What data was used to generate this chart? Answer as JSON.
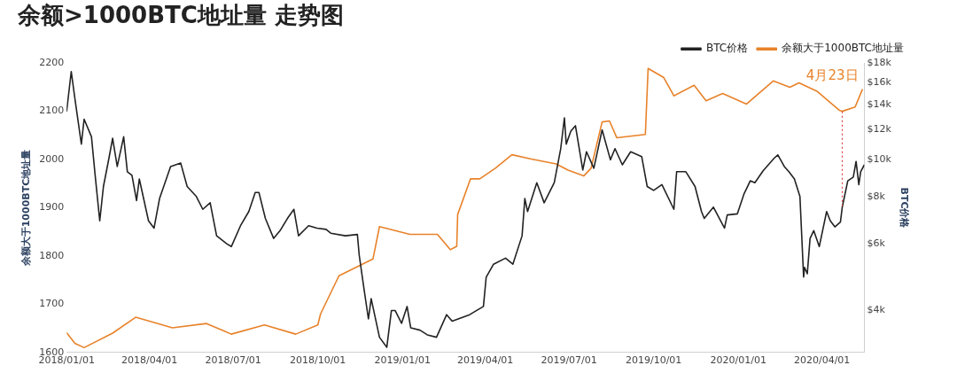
{
  "chart_data": {
    "type": "line",
    "title": "余额>1000BTC地址量 走势图",
    "ylabel": "余额大于1000BTC地址量",
    "y2label": "BTC价格",
    "legend": "top right",
    "grid": false,
    "marker": "none",
    "line_style": "solid",
    "log": "y2",
    "xlim": [
      "2018-01-01",
      "2020-05-17"
    ],
    "xticks": [
      {
        "value": "2018-01-01",
        "label": "2018/01/01"
      },
      {
        "value": "2018-04-01",
        "label": "2018/04/01"
      },
      {
        "value": "2018-07-01",
        "label": "2018/07/01"
      },
      {
        "value": "2018-10-01",
        "label": "2018/10/01"
      },
      {
        "value": "2019-01-01",
        "label": "2019/01/01"
      },
      {
        "value": "2019-04-01",
        "label": "2019/04/01"
      },
      {
        "value": "2019-07-01",
        "label": "2019/07/01"
      },
      {
        "value": "2019-10-01",
        "label": "2019/10/01"
      },
      {
        "value": "2020-01-01",
        "label": "2020/01/01"
      },
      {
        "value": "2020-04-01",
        "label": "2020/04/01"
      }
    ],
    "ylim": [
      1600,
      2200
    ],
    "yticks": [
      1600,
      1700,
      1800,
      1900,
      2000,
      2100,
      2200
    ],
    "y2lim": [
      3100,
      18000
    ],
    "y2ticks": [
      {
        "value": 4000,
        "label": "$4k"
      },
      {
        "value": 6000,
        "label": "$6k"
      },
      {
        "value": 8000,
        "label": "$8k"
      },
      {
        "value": 10000,
        "label": "$10k"
      },
      {
        "value": 12000,
        "label": "$12k"
      },
      {
        "value": 14000,
        "label": "$14k"
      },
      {
        "value": 16000,
        "label": "$16k"
      },
      {
        "value": 18000,
        "label": "$18k"
      }
    ],
    "ref_lines": [
      {
        "axis": "x",
        "value": "2020-04-23",
        "color": "#e03c3c",
        "line_style": "dotted",
        "label": "4月23日"
      }
    ],
    "series": [
      {
        "name": "BTC价格",
        "color": "#222222",
        "axis": "y2",
        "x": [
          "2018-01-01",
          "2018-01-06",
          "2018-01-10",
          "2018-01-17",
          "2018-01-20",
          "2018-01-28",
          "2018-02-01",
          "2018-02-06",
          "2018-02-10",
          "2018-02-16",
          "2018-02-20",
          "2018-02-25",
          "2018-03-04",
          "2018-03-08",
          "2018-03-13",
          "2018-03-18",
          "2018-03-21",
          "2018-03-31",
          "2018-04-06",
          "2018-04-12",
          "2018-04-24",
          "2018-05-05",
          "2018-05-12",
          "2018-05-22",
          "2018-05-29",
          "2018-06-06",
          "2018-06-13",
          "2018-06-24",
          "2018-06-29",
          "2018-07-09",
          "2018-07-18",
          "2018-07-25",
          "2018-07-29",
          "2018-08-05",
          "2018-08-14",
          "2018-08-21",
          "2018-08-29",
          "2018-09-05",
          "2018-09-10",
          "2018-09-21",
          "2018-09-30",
          "2018-10-10",
          "2018-10-15",
          "2018-10-31",
          "2018-11-13",
          "2018-11-15",
          "2018-11-20",
          "2018-11-25",
          "2018-11-28",
          "2018-12-07",
          "2018-12-15",
          "2018-12-20",
          "2018-12-24",
          "2018-12-31",
          "2019-01-06",
          "2019-01-10",
          "2019-01-20",
          "2019-01-28",
          "2019-02-07",
          "2019-02-18",
          "2019-02-24",
          "2019-03-15",
          "2019-03-30",
          "2019-04-02",
          "2019-04-10",
          "2019-04-23",
          "2019-05-01",
          "2019-05-11",
          "2019-05-14",
          "2019-05-17",
          "2019-05-27",
          "2019-06-04",
          "2019-06-15",
          "2019-06-22",
          "2019-06-26",
          "2019-06-28",
          "2019-07-03",
          "2019-07-08",
          "2019-07-16",
          "2019-07-20",
          "2019-07-28",
          "2019-08-06",
          "2019-08-15",
          "2019-08-20",
          "2019-08-28",
          "2019-09-06",
          "2019-09-18",
          "2019-09-24",
          "2019-10-01",
          "2019-10-10",
          "2019-10-23",
          "2019-10-26",
          "2019-11-05",
          "2019-11-15",
          "2019-11-22",
          "2019-11-25",
          "2019-12-05",
          "2019-12-17",
          "2019-12-20",
          "2019-12-31",
          "2020-01-07",
          "2020-01-14",
          "2020-01-19",
          "2020-01-28",
          "2020-02-09",
          "2020-02-13",
          "2020-02-20",
          "2020-02-25",
          "2020-03-02",
          "2020-03-08",
          "2020-03-12",
          "2020-03-13",
          "2020-03-16",
          "2020-03-19",
          "2020-03-23",
          "2020-03-29",
          "2020-04-06",
          "2020-04-10",
          "2020-04-15",
          "2020-04-21",
          "2020-04-23",
          "2020-04-29",
          "2020-05-05",
          "2020-05-08",
          "2020-05-11",
          "2020-05-13",
          "2020-05-17"
        ],
        "values": [
          13400,
          17100,
          14500,
          11000,
          12800,
          11500,
          9100,
          6900,
          8500,
          10100,
          11400,
          9600,
          11500,
          9300,
          9100,
          7800,
          8900,
          6900,
          6600,
          7900,
          9600,
          9800,
          8500,
          8000,
          7400,
          7700,
          6300,
          6000,
          5900,
          6700,
          7300,
          8200,
          8200,
          7000,
          6200,
          6500,
          7000,
          7400,
          6300,
          6700,
          6600,
          6550,
          6400,
          6300,
          6350,
          5600,
          4600,
          3800,
          4300,
          3400,
          3200,
          4000,
          4000,
          3700,
          4100,
          3600,
          3550,
          3450,
          3400,
          3900,
          3750,
          3900,
          4100,
          4900,
          5300,
          5500,
          5300,
          6300,
          7900,
          7300,
          8700,
          7700,
          8700,
          10700,
          12900,
          11000,
          11900,
          12300,
          9400,
          10500,
          9500,
          12000,
          10000,
          10700,
          9700,
          10500,
          10200,
          8500,
          8300,
          8600,
          7400,
          9300,
          9300,
          8500,
          7300,
          7000,
          7500,
          6600,
          7150,
          7200,
          8100,
          8800,
          8700,
          9350,
          10100,
          10300,
          9600,
          9300,
          8900,
          8000,
          4900,
          5200,
          5000,
          6200,
          6500,
          5900,
          7300,
          6900,
          6650,
          6850,
          7500,
          8800,
          9000,
          9900,
          8600,
          9300,
          9700
        ]
      },
      {
        "name": "余额大于1000BTC地址量",
        "color": "#e8822a",
        "x": [
          "2018-01-01",
          "2018-01-10",
          "2018-01-20",
          "2018-02-20",
          "2018-03-17",
          "2018-04-26",
          "2018-06-02",
          "2018-06-29",
          "2018-08-04",
          "2018-09-07",
          "2018-10-01",
          "2018-10-04",
          "2018-10-24",
          "2018-11-30",
          "2018-12-07",
          "2019-01-09",
          "2019-02-08",
          "2019-02-22",
          "2019-03-01",
          "2019-03-02",
          "2019-03-16",
          "2019-03-26",
          "2019-04-12",
          "2019-04-30",
          "2019-05-21",
          "2019-06-17",
          "2019-06-30",
          "2019-07-17",
          "2019-07-25",
          "2019-08-06",
          "2019-08-14",
          "2019-08-22",
          "2019-09-22",
          "2019-09-25",
          "2019-10-12",
          "2019-10-23",
          "2019-11-14",
          "2019-11-27",
          "2019-12-15",
          "2020-01-10",
          "2020-02-08",
          "2020-02-26",
          "2020-03-07",
          "2020-03-27",
          "2020-04-20",
          "2020-04-23",
          "2020-05-07",
          "2020-05-15"
        ],
        "values": [
          1641,
          1619,
          1610,
          1640,
          1673,
          1651,
          1660,
          1638,
          1657,
          1638,
          1657,
          1680,
          1759,
          1794,
          1861,
          1845,
          1845,
          1813,
          1820,
          1886,
          1960,
          1960,
          1982,
          2010,
          2001,
          1991,
          1978,
          1966,
          1982,
          2078,
          2080,
          2045,
          2052,
          2189,
          2170,
          2132,
          2154,
          2122,
          2137,
          2115,
          2163,
          2150,
          2159,
          2141,
          2102,
          2100,
          2109,
          2146
        ]
      }
    ]
  }
}
